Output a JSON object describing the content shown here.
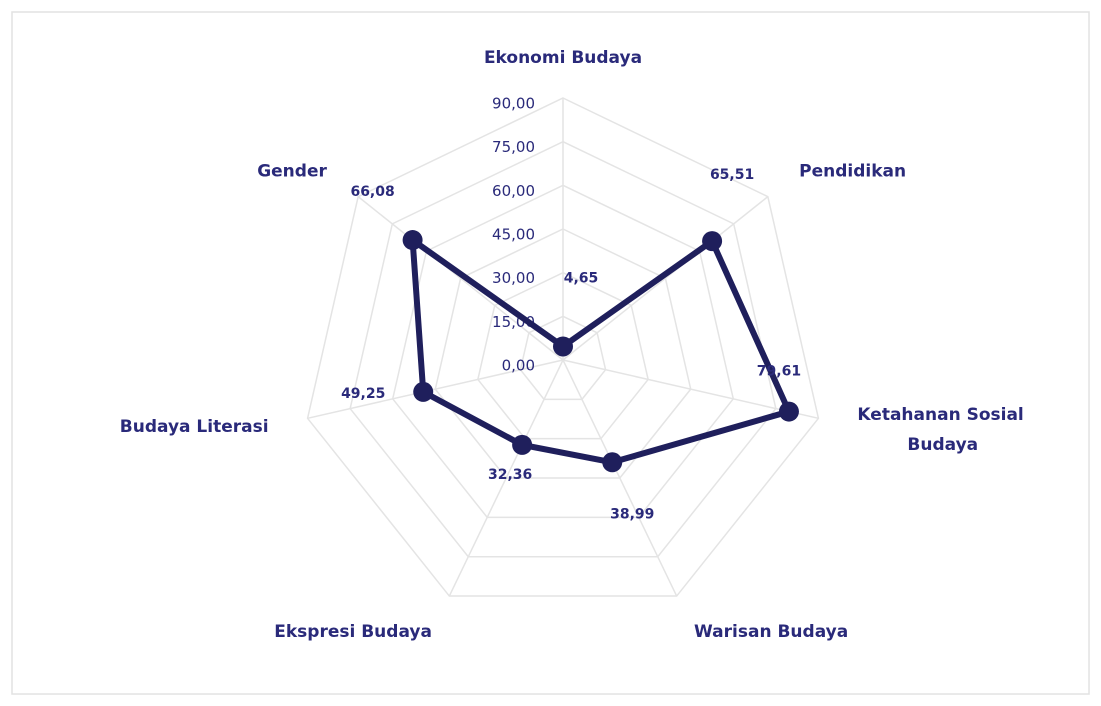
{
  "chart_data": {
    "type": "radar",
    "categories": [
      "Ekonomi Budaya",
      "Pendidikan",
      "Ketahanan Sosial Budaya",
      "Warisan Budaya",
      "Ekspresi Budaya",
      "Budaya Literasi",
      "Gender"
    ],
    "values": [
      4.65,
      65.51,
      79.61,
      38.99,
      32.36,
      49.25,
      66.08
    ],
    "value_labels": [
      "4,65",
      "65,51",
      "79,61",
      "38,99",
      "32,36",
      "49,25",
      "66,08"
    ],
    "color": "#1f1f5c",
    "ylim": [
      0,
      90
    ],
    "yticks": [
      {
        "value": 0,
        "label": "0,00"
      },
      {
        "value": 15,
        "label": "15,00"
      },
      {
        "value": 30,
        "label": "30,00"
      },
      {
        "value": 45,
        "label": "45,00"
      },
      {
        "value": 60,
        "label": "60,00"
      },
      {
        "value": 75,
        "label": "75,00"
      },
      {
        "value": 90,
        "label": "90,00"
      }
    ],
    "grid": true
  }
}
